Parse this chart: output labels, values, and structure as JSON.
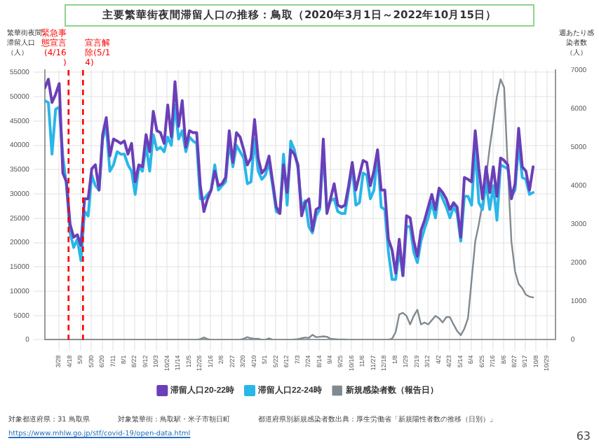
{
  "chart_data": {
    "type": "line",
    "title": "主要繁華街夜間滞留人口の推移：鳥取（2020年3月1日～2022年10月15日）",
    "ylabel": "繁華街夜間滞留人口（人）",
    "y2label": "週あたり感染者数（人）",
    "x": [
      "2020-03-01",
      "2020-03-08",
      "2020-03-15",
      "2020-03-22",
      "2020-03-29",
      "2020-04-05",
      "2020-04-12",
      "2020-04-19",
      "2020-04-26",
      "2020-05-03",
      "2020-05-10",
      "2020-05-17",
      "2020-05-24",
      "2020-05-31",
      "2020-06-07",
      "2020-06-14",
      "2020-06-21",
      "2020-06-28",
      "2020-07-05",
      "2020-07-12",
      "2020-07-19",
      "2020-07-26",
      "2020-08-02",
      "2020-08-09",
      "2020-08-16",
      "2020-08-23",
      "2020-08-30",
      "2020-09-06",
      "2020-09-13",
      "2020-09-20",
      "2020-09-27",
      "2020-10-04",
      "2020-10-11",
      "2020-10-18",
      "2020-10-25",
      "2020-11-01",
      "2020-11-08",
      "2020-11-15",
      "2020-11-22",
      "2020-11-29",
      "2020-12-06",
      "2020-12-13",
      "2020-12-20",
      "2020-12-27",
      "2021-01-03",
      "2021-01-10",
      "2021-01-17",
      "2021-01-24",
      "2021-01-31",
      "2021-02-07",
      "2021-02-14",
      "2021-02-21",
      "2021-02-28",
      "2021-03-07",
      "2021-03-14",
      "2021-03-21",
      "2021-03-28",
      "2021-04-04",
      "2021-04-11",
      "2021-04-18",
      "2021-04-25",
      "2021-05-02",
      "2021-05-09",
      "2021-05-16",
      "2021-05-23",
      "2021-05-30",
      "2021-06-06",
      "2021-06-13",
      "2021-06-20",
      "2021-06-27",
      "2021-07-04",
      "2021-07-11",
      "2021-07-18",
      "2021-07-25",
      "2021-08-01",
      "2021-08-08",
      "2021-08-15",
      "2021-08-22",
      "2021-08-29",
      "2021-09-05",
      "2021-09-12",
      "2021-09-19",
      "2021-09-26",
      "2021-10-03",
      "2021-10-10",
      "2021-10-17",
      "2021-10-24",
      "2021-10-31",
      "2021-11-07",
      "2021-11-14",
      "2021-11-21",
      "2021-11-28",
      "2021-12-05",
      "2021-12-12",
      "2021-12-19",
      "2021-12-26",
      "2022-01-02",
      "2022-01-09",
      "2022-01-16",
      "2022-01-23",
      "2022-01-30",
      "2022-02-06",
      "2022-02-13",
      "2022-02-20",
      "2022-02-27",
      "2022-03-06",
      "2022-03-13",
      "2022-03-20",
      "2022-03-27",
      "2022-04-03",
      "2022-04-10",
      "2022-04-17",
      "2022-04-24",
      "2022-05-01",
      "2022-05-08",
      "2022-05-15",
      "2022-05-22",
      "2022-05-29",
      "2022-06-05",
      "2022-06-12",
      "2022-06-19",
      "2022-06-26",
      "2022-07-03",
      "2022-07-10",
      "2022-07-17",
      "2022-07-24",
      "2022-07-31",
      "2022-08-07",
      "2022-08-14",
      "2022-08-21",
      "2022-08-28",
      "2022-09-04",
      "2022-09-11",
      "2022-09-18",
      "2022-09-25",
      "2022-10-02"
    ],
    "series": [
      {
        "name": "滞留人口20-22時",
        "color": "#6a3fb8",
        "values": [
          51800,
          53600,
          48800,
          50500,
          52700,
          34300,
          32500,
          23800,
          21100,
          21600,
          19400,
          29000,
          29000,
          35200,
          36000,
          30800,
          42200,
          45700,
          37800,
          41300,
          40900,
          40400,
          40900,
          38200,
          40400,
          32500,
          36000,
          35600,
          42200,
          38700,
          47000,
          43000,
          42600,
          40400,
          48300,
          41700,
          53100,
          43900,
          49200,
          39600,
          43000,
          42600,
          42600,
          31700,
          26400,
          29000,
          30800,
          34700,
          31700,
          32100,
          33400,
          43000,
          36500,
          42600,
          41700,
          39100,
          36000,
          37400,
          45300,
          37400,
          34300,
          35200,
          37800,
          32500,
          27300,
          26000,
          36000,
          30300,
          39100,
          38200,
          36000,
          25500,
          28200,
          29000,
          22500,
          26800,
          27300,
          41300,
          26000,
          29000,
          32100,
          27700,
          27300,
          27700,
          31700,
          36500,
          30800,
          33900,
          36900,
          36500,
          31700,
          34700,
          39100,
          30800,
          30800,
          20700,
          18500,
          13700,
          20700,
          13200,
          25500,
          25100,
          20300,
          17200,
          22500,
          24600,
          27300,
          29900,
          26800,
          31200,
          30300,
          29000,
          26800,
          28200,
          27300,
          21100,
          33400,
          33000,
          32500,
          43000,
          35200,
          29000,
          35600,
          30300,
          35600,
          29500,
          37400,
          36900,
          36000,
          29000,
          32100,
          43500,
          35600,
          34700,
          30800,
          35600
        ]
      },
      {
        "name": "滞留人口22-24時",
        "color": "#29b6e8",
        "values": [
          49200,
          48800,
          38200,
          47400,
          47900,
          37800,
          31700,
          22000,
          19000,
          20700,
          16300,
          26400,
          25500,
          33900,
          31700,
          30800,
          41300,
          43900,
          34700,
          36000,
          38700,
          38200,
          38200,
          36000,
          34700,
          29900,
          35600,
          34700,
          40000,
          34700,
          42200,
          39100,
          39600,
          38700,
          41700,
          40000,
          48300,
          41300,
          43000,
          38700,
          41700,
          40900,
          40400,
          29000,
          29000,
          29900,
          30800,
          36000,
          30800,
          31700,
          32500,
          40900,
          35600,
          40000,
          38700,
          37400,
          32100,
          32500,
          41300,
          34700,
          33000,
          33900,
          36500,
          31700,
          26400,
          26000,
          38200,
          27700,
          40900,
          39100,
          35200,
          27300,
          28600,
          23300,
          22000,
          25500,
          26800,
          39100,
          26400,
          28600,
          29000,
          26400,
          26000,
          26000,
          30800,
          35600,
          27700,
          28200,
          34300,
          33900,
          29000,
          30800,
          38200,
          27300,
          26800,
          18100,
          12400,
          12400,
          18500,
          13200,
          23300,
          23300,
          18100,
          15900,
          20300,
          22900,
          25100,
          28200,
          25100,
          30800,
          29000,
          27300,
          25100,
          27300,
          26000,
          20300,
          29500,
          29500,
          27700,
          39600,
          28200,
          26800,
          32500,
          26800,
          31700,
          24600,
          36000,
          35600,
          35200,
          29500,
          30800,
          40400,
          33400,
          33000,
          29900,
          30300
        ]
      },
      {
        "name": "新規感染者数（報告日）",
        "color": "#808a90",
        "axis": "y2",
        "values": [
          0,
          0,
          0,
          0,
          0,
          0,
          0,
          0,
          0,
          0,
          0,
          0,
          0,
          0,
          0,
          0,
          0,
          0,
          0,
          0,
          0,
          0,
          0,
          0,
          0,
          0,
          0,
          0,
          0,
          0,
          0,
          0,
          0,
          0,
          0,
          0,
          0,
          0,
          0,
          0,
          0,
          0,
          0,
          20,
          60,
          20,
          0,
          0,
          0,
          0,
          0,
          0,
          0,
          0,
          0,
          30,
          70,
          40,
          30,
          30,
          0,
          0,
          40,
          0,
          0,
          0,
          0,
          0,
          0,
          10,
          20,
          40,
          60,
          50,
          130,
          70,
          80,
          90,
          80,
          30,
          20,
          10,
          10,
          10,
          0,
          0,
          0,
          0,
          0,
          0,
          0,
          0,
          0,
          0,
          0,
          0,
          30,
          200,
          660,
          700,
          620,
          400,
          620,
          780,
          400,
          450,
          400,
          510,
          620,
          560,
          450,
          590,
          590,
          400,
          230,
          120,
          290,
          560,
          1560,
          2550,
          3000,
          3550,
          4210,
          4990,
          5650,
          6320,
          6760,
          6540,
          4430,
          2550,
          1780,
          1450,
          1340,
          1170,
          1120,
          1100
        ]
      }
    ],
    "xlim": [
      "2020-03-01",
      "2022-11-14"
    ],
    "xticks": [
      {
        "value": "2020-03-28",
        "label": "3/28"
      },
      {
        "value": "2020-04-18",
        "label": "4/18"
      },
      {
        "value": "2020-05-09",
        "label": "5/9"
      },
      {
        "value": "2020-05-30",
        "label": "5/30"
      },
      {
        "value": "2020-06-20",
        "label": "6/20"
      },
      {
        "value": "2020-07-11",
        "label": "7/11"
      },
      {
        "value": "2020-08-01",
        "label": "8/1"
      },
      {
        "value": "2020-08-22",
        "label": "8/22"
      },
      {
        "value": "2020-09-12",
        "label": "9/12"
      },
      {
        "value": "2020-10-03",
        "label": "10/3"
      },
      {
        "value": "2020-10-24",
        "label": "10/24"
      },
      {
        "value": "2020-11-14",
        "label": "11/14"
      },
      {
        "value": "2020-12-05",
        "label": "12/5"
      },
      {
        "value": "2020-12-26",
        "label": "12/26"
      },
      {
        "value": "2021-01-16",
        "label": "1/16"
      },
      {
        "value": "2021-02-06",
        "label": "2/6"
      },
      {
        "value": "2021-02-27",
        "label": "2/27"
      },
      {
        "value": "2021-03-20",
        "label": "3/20"
      },
      {
        "value": "2021-04-10",
        "label": "4/10"
      },
      {
        "value": "2021-05-01",
        "label": "5/1"
      },
      {
        "value": "2021-05-22",
        "label": "5/22"
      },
      {
        "value": "2021-06-12",
        "label": "6/12"
      },
      {
        "value": "2021-07-03",
        "label": "7/3"
      },
      {
        "value": "2021-07-24",
        "label": "7/24"
      },
      {
        "value": "2021-08-14",
        "label": "8/14"
      },
      {
        "value": "2021-09-04",
        "label": "9/4"
      },
      {
        "value": "2021-09-25",
        "label": "9/25"
      },
      {
        "value": "2021-10-16",
        "label": "10/16"
      },
      {
        "value": "2021-11-06",
        "label": "11/6"
      },
      {
        "value": "2021-11-27",
        "label": "11/27"
      },
      {
        "value": "2021-12-18",
        "label": "12/18"
      },
      {
        "value": "2022-01-08",
        "label": "1/8"
      },
      {
        "value": "2022-01-29",
        "label": "1/29"
      },
      {
        "value": "2022-02-19",
        "label": "2/19"
      },
      {
        "value": "2022-03-12",
        "label": "3/12"
      },
      {
        "value": "2022-04-02",
        "label": "4/2"
      },
      {
        "value": "2022-04-23",
        "label": "4/23"
      },
      {
        "value": "2022-05-14",
        "label": "5/14"
      },
      {
        "value": "2022-06-04",
        "label": "6/4"
      },
      {
        "value": "2022-06-25",
        "label": "6/25"
      },
      {
        "value": "2022-07-16",
        "label": "7/16"
      },
      {
        "value": "2022-08-06",
        "label": "8/6"
      },
      {
        "value": "2022-08-27",
        "label": "8/27"
      },
      {
        "value": "2022-09-17",
        "label": "9/17"
      },
      {
        "value": "2022-10-08",
        "label": "10/8"
      },
      {
        "value": "2022-10-29",
        "label": "10/29"
      }
    ],
    "ylim": [
      0,
      55500
    ],
    "yticks": [
      0,
      5000,
      10000,
      15000,
      20000,
      25000,
      30000,
      35000,
      40000,
      45000,
      50000,
      55000
    ],
    "y2lim": [
      0,
      7000
    ],
    "y2ticks": [
      0,
      1000,
      2000,
      3000,
      4000,
      5000,
      6000,
      7000
    ],
    "ref_lines": [
      {
        "axis": "x",
        "value": "2020-04-16",
        "label": "緊急事態宣言(4/16)",
        "color": "#ff0000",
        "line_style": "dashed"
      },
      {
        "axis": "x",
        "value": "2020-05-14",
        "label": "宣言解除(5/14)",
        "color": "#ff0000",
        "line_style": "dashed"
      }
    ],
    "annotations": [
      "対象都道府県：31 鳥取県",
      "対象繁華街：鳥取駅・米子市朝日町",
      "都道府県別新規感染者数出典：厚生労働省「新規陽性者数の推移（日別）」",
      "https://www.mhlw.go.jp/stf/covid-19/open-data.html",
      "63"
    ],
    "grid": true,
    "legend": "bottom",
    "marker": "none",
    "line_style": "solid"
  }
}
